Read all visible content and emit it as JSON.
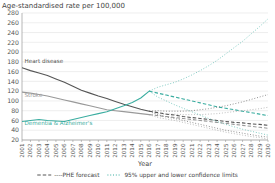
{
  "chart_data": {
    "type": "line",
    "title": "Age-standardised rate per 100,000",
    "x_label": "Year",
    "x": [
      2001,
      2002,
      2003,
      2004,
      2005,
      2006,
      2007,
      2008,
      2009,
      2010,
      2011,
      2012,
      2013,
      2014,
      2015,
      2016,
      2017,
      2018,
      2019,
      2020,
      2021,
      2022,
      2023,
      2024,
      2025,
      2026,
      2027,
      2028,
      2029,
      2030
    ],
    "xlim": [
      2001,
      2030
    ],
    "xticks": [
      2001,
      2002,
      2003,
      2004,
      2005,
      2006,
      2007,
      2008,
      2009,
      2010,
      2011,
      2012,
      2013,
      2014,
      2015,
      2016,
      2017,
      2018,
      2019,
      2020,
      2021,
      2022,
      2023,
      2024,
      2025,
      2026,
      2027,
      2028,
      2029,
      2030
    ],
    "ylim": [
      20,
      280
    ],
    "yticks": [
      20,
      40,
      60,
      80,
      100,
      120,
      140,
      160,
      180,
      200,
      220,
      240,
      260,
      280
    ],
    "grid": true,
    "legend": "bottom",
    "series": [
      {
        "color": "#555555",
        "line_style": "solid",
        "values": [
          168,
          162,
          157,
          152,
          145,
          138,
          130,
          122,
          116,
          110,
          105,
          99,
          93,
          88,
          83,
          79,
          null,
          null,
          null,
          null,
          null,
          null,
          null,
          null,
          null,
          null,
          null,
          null,
          null,
          null
        ]
      },
      {
        "color": "#999999",
        "line_style": "solid",
        "values": [
          118,
          116,
          113,
          110,
          106,
          102,
          98,
          94,
          90,
          86,
          82,
          80,
          78,
          76,
          74,
          72,
          null,
          null,
          null,
          null,
          null,
          null,
          null,
          null,
          null,
          null,
          null,
          null,
          null,
          null
        ]
      },
      {
        "color": "#3aada0",
        "line_style": "solid",
        "values": [
          58,
          60,
          62,
          60,
          59,
          58,
          62,
          66,
          70,
          74,
          78,
          84,
          90,
          97,
          106,
          120,
          null,
          null,
          null,
          null,
          null,
          null,
          null,
          null,
          null,
          null,
          null,
          null,
          null,
          null
        ]
      },
      {
        "name": "----PHE forecast",
        "color": "#555555",
        "line_style": "dashed",
        "values": [
          null,
          null,
          null,
          null,
          null,
          null,
          null,
          null,
          null,
          null,
          null,
          null,
          null,
          null,
          null,
          79,
          76,
          73,
          71,
          68,
          66,
          64,
          62,
          60,
          58,
          56,
          55,
          53,
          52,
          50
        ]
      },
      {
        "color": "#999999",
        "line_style": "dashed",
        "values": [
          null,
          null,
          null,
          null,
          null,
          null,
          null,
          null,
          null,
          null,
          null,
          null,
          null,
          null,
          null,
          72,
          70,
          68,
          66,
          64,
          62,
          60,
          58,
          56,
          54,
          52,
          50,
          48,
          46,
          44
        ]
      },
      {
        "color": "#3aada0",
        "line_style": "dashed",
        "values": [
          null,
          null,
          null,
          null,
          null,
          null,
          null,
          null,
          null,
          null,
          null,
          null,
          null,
          null,
          null,
          120,
          116,
          112,
          108,
          104,
          100,
          96,
          92,
          88,
          85,
          82,
          79,
          76,
          73,
          70
        ]
      },
      {
        "color": "#555555",
        "line_style": "dotted",
        "values": [
          null,
          null,
          null,
          null,
          null,
          null,
          null,
          null,
          null,
          null,
          null,
          null,
          null,
          null,
          null,
          79,
          80,
          79,
          79,
          79,
          80,
          82,
          84,
          87,
          90,
          94,
          98,
          103,
          108,
          113
        ]
      },
      {
        "color": "#555555",
        "line_style": "dotted",
        "values": [
          null,
          null,
          null,
          null,
          null,
          null,
          null,
          null,
          null,
          null,
          null,
          null,
          null,
          null,
          null,
          79,
          72,
          67,
          64,
          60,
          56,
          52,
          48,
          44,
          40,
          37,
          34,
          31,
          28,
          26
        ]
      },
      {
        "color": "#999999",
        "line_style": "dotted",
        "values": [
          null,
          null,
          null,
          null,
          null,
          null,
          null,
          null,
          null,
          null,
          null,
          null,
          null,
          null,
          null,
          72,
          74,
          73,
          73,
          72,
          72,
          72,
          73,
          74,
          76,
          78,
          80,
          82,
          84,
          87
        ]
      },
      {
        "color": "#999999",
        "line_style": "dotted",
        "values": [
          null,
          null,
          null,
          null,
          null,
          null,
          null,
          null,
          null,
          null,
          null,
          null,
          null,
          null,
          null,
          72,
          66,
          63,
          60,
          56,
          52,
          48,
          44,
          40,
          36,
          33,
          30,
          27,
          25,
          22
        ]
      },
      {
        "name": "95% upper and lower confidence limits",
        "color": "#3aada0",
        "line_style": "dotted",
        "values": [
          null,
          null,
          null,
          null,
          null,
          null,
          null,
          null,
          null,
          null,
          null,
          null,
          null,
          null,
          null,
          120,
          128,
          133,
          138,
          145,
          153,
          162,
          172,
          183,
          196,
          209,
          222,
          237,
          252,
          268
        ]
      },
      {
        "color": "#3aada0",
        "line_style": "dotted",
        "values": [
          null,
          null,
          null,
          null,
          null,
          null,
          null,
          null,
          null,
          null,
          null,
          null,
          null,
          null,
          null,
          120,
          108,
          100,
          92,
          85,
          78,
          71,
          64,
          58,
          52,
          47,
          42,
          38,
          34,
          30
        ]
      }
    ],
    "annotations": [
      {
        "text": "Heart disease",
        "x": 2001.3,
        "y": 175,
        "color": "#555555"
      },
      {
        "text": "Stroke",
        "x": 2001.3,
        "y": 106,
        "color": "#999999"
      },
      {
        "text": "Dementia & Alzheimer's",
        "x": 2001.3,
        "y": 48,
        "color": "#3aada0"
      }
    ]
  }
}
